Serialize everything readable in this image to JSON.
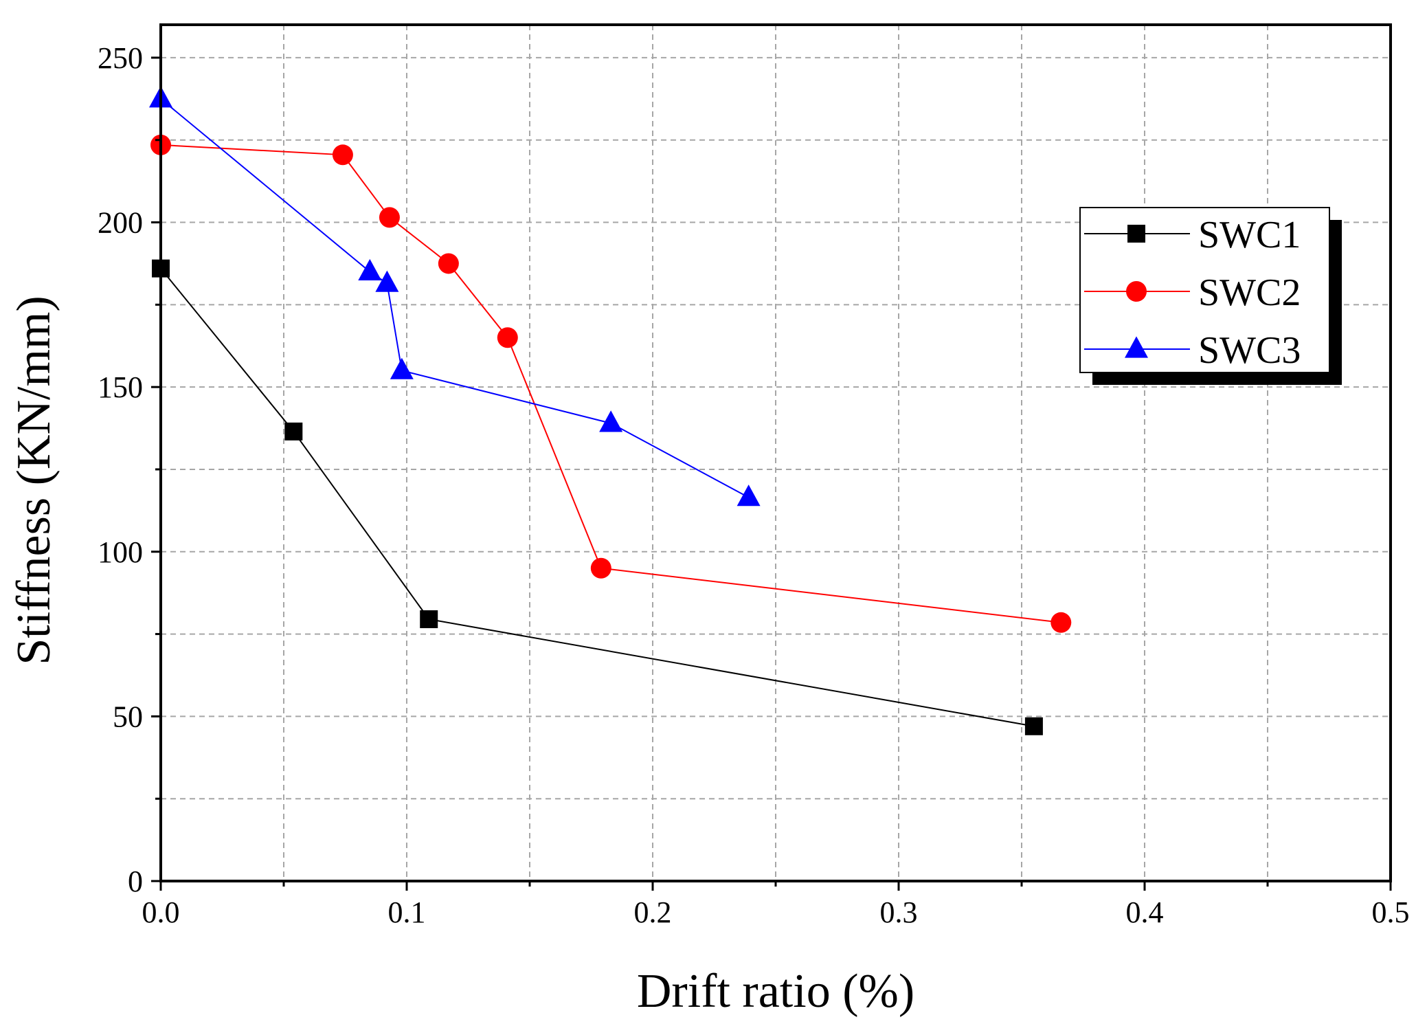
{
  "chart_data": {
    "type": "line",
    "title": "",
    "xlabel": "Drift ratio (%)",
    "ylabel": "Stiffness (KN/mm)",
    "xlim": [
      0,
      0.5
    ],
    "ylim": [
      0,
      260
    ],
    "x_ticks": [
      0.0,
      0.1,
      0.2,
      0.3,
      0.4,
      0.5
    ],
    "x_tick_labels": [
      "0.0",
      "0.1",
      "0.2",
      "0.3",
      "0.4",
      "0.5"
    ],
    "x_minor_ticks": [
      0.05,
      0.15,
      0.25,
      0.35,
      0.45
    ],
    "y_ticks": [
      0,
      50,
      100,
      150,
      200,
      250
    ],
    "y_tick_labels": [
      "0",
      "50",
      "100",
      "150",
      "200",
      "250"
    ],
    "y_minor_ticks": [
      25,
      75,
      125,
      175,
      225
    ],
    "grid": true,
    "legend_position": "upper-right",
    "series": [
      {
        "name": "SWC1",
        "color": "#000000",
        "marker": "square",
        "points": [
          [
            0.0,
            186
          ],
          [
            0.054,
            136.5
          ],
          [
            0.109,
            79.5
          ],
          [
            0.355,
            47
          ]
        ]
      },
      {
        "name": "SWC2",
        "color": "#ff0000",
        "marker": "circle",
        "points": [
          [
            0.0,
            223.5
          ],
          [
            0.074,
            220.5
          ],
          [
            0.093,
            201.5
          ],
          [
            0.117,
            187.5
          ],
          [
            0.141,
            165
          ],
          [
            0.179,
            95
          ],
          [
            0.366,
            78.5
          ]
        ]
      },
      {
        "name": "SWC3",
        "color": "#0000ff",
        "marker": "triangle",
        "points": [
          [
            0.0,
            237.5
          ],
          [
            0.085,
            185
          ],
          [
            0.092,
            181.5
          ],
          [
            0.098,
            155
          ],
          [
            0.183,
            139
          ],
          [
            0.239,
            116.5
          ]
        ]
      }
    ]
  }
}
